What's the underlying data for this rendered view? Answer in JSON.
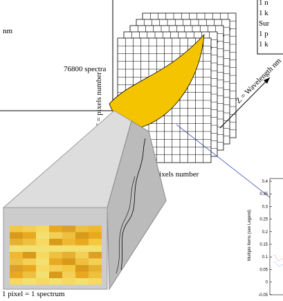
{
  "left_box": {
    "lines": [
      "nm",
      "76800 spectra"
    ]
  },
  "cube": {
    "y_label": "Y = pixels number",
    "x_label": "X = pixels number",
    "z_label": "Z = Wavelength nm"
  },
  "zoom": {
    "caption": "1 pixel = 1 spectrum"
  },
  "legend_box": {
    "lines": [
      "1 n",
      "1 k",
      "Sur",
      "1 p",
      "1 k"
    ]
  },
  "plot": {
    "y_axis_label": "Multiple Items (see Legend)",
    "yticks": [
      "0.4",
      "0.35",
      "0.3",
      "0.25",
      "0.2",
      "0.15",
      "0.1",
      "0.05",
      "0",
      "-0.05"
    ]
  }
}
